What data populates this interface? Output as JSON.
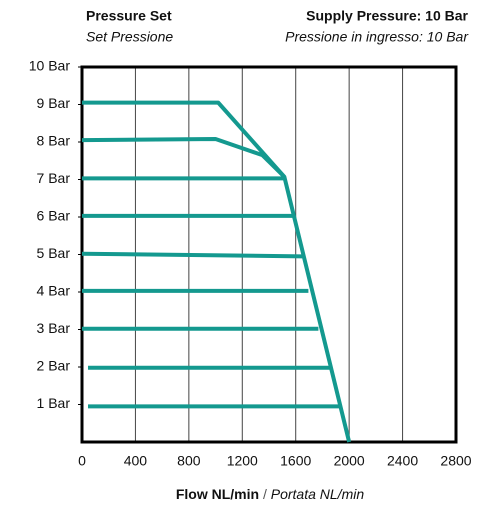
{
  "chart_data": {
    "type": "line",
    "headers": [
      {
        "title": "Pressure Set",
        "subtitle": "Set Pressione"
      },
      {
        "title": "Supply Pressure: 10 Bar",
        "subtitle": "Pressione in ingresso: 10 Bar"
      }
    ],
    "x_label": {
      "main": "Flow NL/min",
      "separator": "/",
      "translation": "Portata NL/min"
    },
    "xlim": [
      0,
      2800
    ],
    "xticks": [
      0,
      400,
      800,
      1200,
      1600,
      2000,
      2400,
      2800
    ],
    "ylim": [
      0,
      10
    ],
    "yticks": [
      {
        "value": 1,
        "label": "1 Bar"
      },
      {
        "value": 2,
        "label": "2 Bar"
      },
      {
        "value": 3,
        "label": "3 Bar"
      },
      {
        "value": 4,
        "label": "4 Bar"
      },
      {
        "value": 5,
        "label": "5 Bar"
      },
      {
        "value": 6,
        "label": "6 Bar"
      },
      {
        "value": 7,
        "label": "7 Bar"
      },
      {
        "value": 8,
        "label": "8 Bar"
      },
      {
        "value": 9,
        "label": "9 Bar"
      },
      {
        "value": 10,
        "label": "10 Bar"
      }
    ],
    "grid": true,
    "color": "#14998f",
    "series": [
      {
        "x": [
          0,
          1020,
          1515,
          2000
        ],
        "values": [
          9.05,
          9.05,
          7.07,
          0
        ]
      },
      {
        "x": [
          0,
          1000,
          1350,
          1515
        ],
        "values": [
          8.05,
          8.08,
          7.65,
          7.07
        ]
      },
      {
        "x": [
          0,
          1515
        ],
        "values": [
          7.03,
          7.03
        ]
      },
      {
        "x": [
          0,
          1580
        ],
        "values": [
          6.03,
          6.03
        ]
      },
      {
        "x": [
          0,
          1650
        ],
        "values": [
          5.02,
          4.95
        ]
      },
      {
        "x": [
          0,
          1695
        ],
        "values": [
          4.03,
          4.03
        ]
      },
      {
        "x": [
          0,
          1770
        ],
        "values": [
          3.02,
          3.02
        ]
      },
      {
        "x": [
          45,
          1860
        ],
        "values": [
          1.98,
          1.98
        ]
      },
      {
        "x": [
          45,
          1935
        ],
        "values": [
          0.95,
          0.95
        ]
      }
    ]
  }
}
